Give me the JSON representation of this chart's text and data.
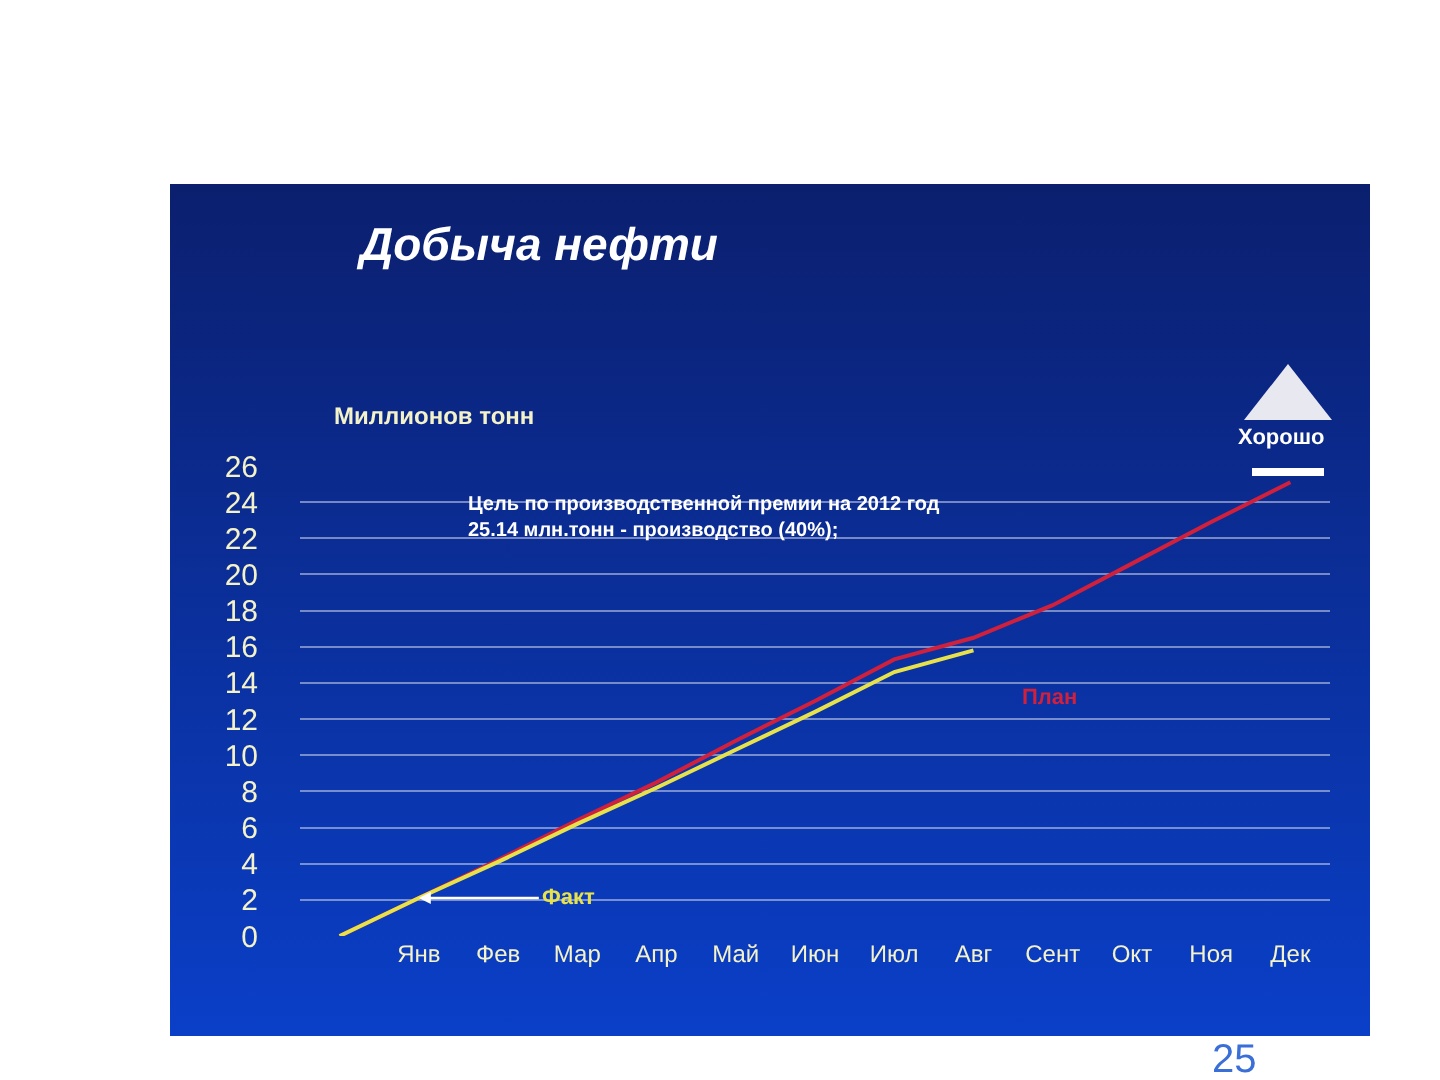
{
  "chart_data": {
    "type": "line",
    "title": "Добыча нефти",
    "ylabel": "Миллионов тонн",
    "categories": [
      null,
      "Янв",
      "Фев",
      "Мар",
      "Апр",
      "Май",
      "Июн",
      "Июл",
      "Авг",
      "Сент",
      "Окт",
      "Ноя",
      "Дек"
    ],
    "series": [
      {
        "name": "План",
        "color": "#d0203c",
        "values": [
          0,
          2.1,
          4.2,
          6.4,
          8.5,
          10.8,
          13.0,
          15.3,
          16.5,
          18.3,
          20.6,
          22.9,
          25.1
        ]
      },
      {
        "name": "Факт",
        "color": "#e8e24a",
        "values": [
          0,
          2.1,
          4.1,
          6.2,
          8.2,
          10.3,
          12.4,
          14.6,
          15.8,
          null,
          null,
          null,
          null
        ]
      }
    ],
    "ylim": [
      0,
      26
    ],
    "yticks": [
      0,
      2,
      4,
      6,
      8,
      10,
      12,
      14,
      16,
      18,
      20,
      22,
      24,
      26
    ],
    "grid": "y",
    "legend": false,
    "marker": "none",
    "line_style": "solid",
    "annotations": [
      "Цель по производственной премии на 2012 год\n25.14 млн.тонн - производство (40%);",
      "Хорошо",
      "25"
    ]
  }
}
